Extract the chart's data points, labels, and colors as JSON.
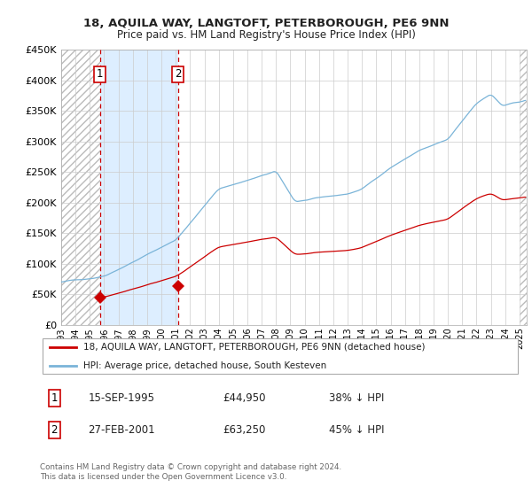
{
  "title": "18, AQUILA WAY, LANGTOFT, PETERBOROUGH, PE6 9NN",
  "subtitle": "Price paid vs. HM Land Registry's House Price Index (HPI)",
  "legend_line1": "18, AQUILA WAY, LANGTOFT, PETERBOROUGH, PE6 9NN (detached house)",
  "legend_line2": "HPI: Average price, detached house, South Kesteven",
  "transaction1": {
    "label": "1",
    "date": "15-SEP-1995",
    "price": 44950,
    "hpi_diff": "38% ↓ HPI",
    "x_year": 1995.71
  },
  "transaction2": {
    "label": "2",
    "date": "27-FEB-2001",
    "price": 63250,
    "hpi_diff": "45% ↓ HPI",
    "x_year": 2001.15
  },
  "footer": "Contains HM Land Registry data © Crown copyright and database right 2024.\nThis data is licensed under the Open Government Licence v3.0.",
  "hpi_color": "#7ab4d8",
  "price_color": "#cc0000",
  "shaded_region_color": "#ddeeff",
  "ylim": [
    0,
    450000
  ],
  "xlim_start": 1993.0,
  "xlim_end": 2025.5,
  "yticks": [
    0,
    50000,
    100000,
    150000,
    200000,
    250000,
    300000,
    350000,
    400000,
    450000
  ],
  "xtick_years": [
    1993,
    1994,
    1995,
    1996,
    1997,
    1998,
    1999,
    2000,
    2001,
    2002,
    2003,
    2004,
    2005,
    2006,
    2007,
    2008,
    2009,
    2010,
    2011,
    2012,
    2013,
    2014,
    2015,
    2016,
    2017,
    2018,
    2019,
    2020,
    2021,
    2022,
    2023,
    2024,
    2025
  ]
}
